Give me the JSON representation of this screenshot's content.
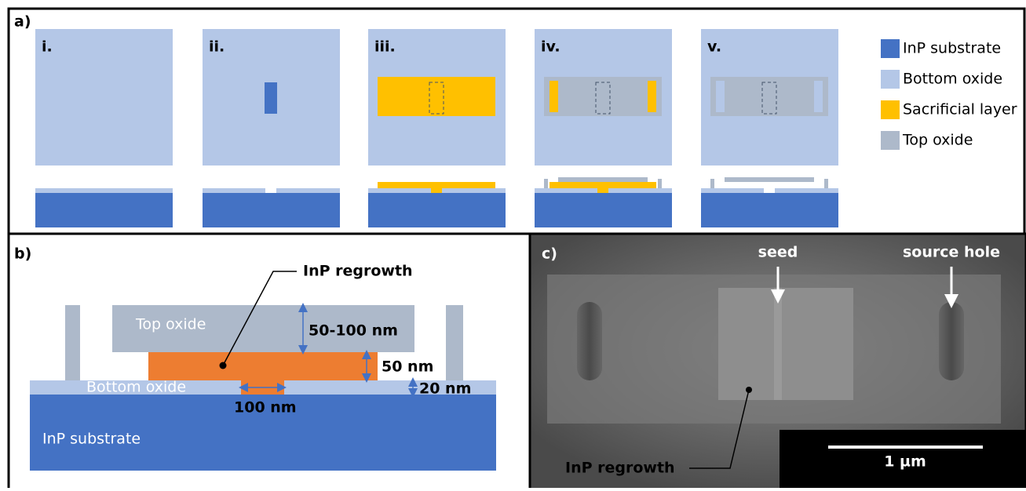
{
  "panel_a": {
    "label": "a)",
    "steps": [
      "i.",
      "ii.",
      "iii.",
      "iv.",
      "v."
    ],
    "legend": [
      {
        "label": "InP substrate",
        "color": "#4472c4"
      },
      {
        "label": "Bottom oxide",
        "color": "#b4c7e7"
      },
      {
        "label": "Sacrificial layer",
        "color": "#ffc000"
      },
      {
        "label": "Top oxide",
        "color": "#adb9ca"
      }
    ]
  },
  "panel_b": {
    "label": "b)",
    "regrowth": "InP regrowth",
    "top_oxide": "Top oxide",
    "top_thickness": "50-100 nm",
    "regrowth_thickness": "50 nm",
    "bottom_oxide": "Bottom oxide",
    "bottom_thickness": "20 nm",
    "seed_width": "100 nm",
    "substrate": "InP substrate"
  },
  "panel_c": {
    "label": "c)",
    "seed": "seed",
    "source_hole": "source hole",
    "regrowth": "InP regrowth",
    "scale": "1 µm"
  }
}
